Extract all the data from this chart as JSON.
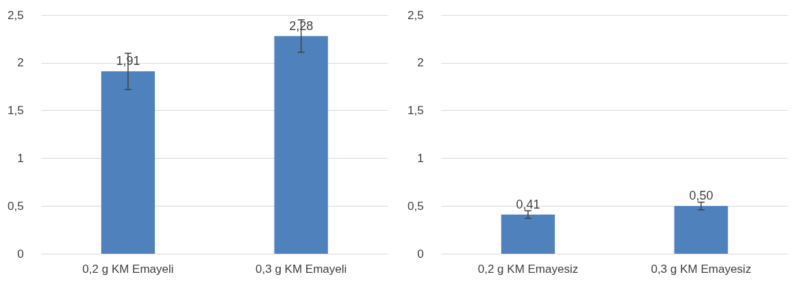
{
  "chart_data": [
    {
      "type": "bar",
      "categories": [
        "0,2 g KM Emayeli",
        "0,3 g KM Emayeli"
      ],
      "series": [
        {
          "color": "#4f81bd",
          "values": [
            1.91,
            2.28
          ],
          "errors": [
            0.19,
            0.17
          ],
          "value_labels": [
            "1,91",
            "2,28"
          ]
        }
      ],
      "ylim": [
        0,
        2.5
      ],
      "yticks": [
        0,
        {
          "value": 0.5,
          "label": "0,5"
        },
        1,
        {
          "value": 1.5,
          "label": "1,5"
        },
        2,
        {
          "value": 2.5,
          "label": "2,5"
        }
      ],
      "grid": "y"
    },
    {
      "type": "bar",
      "categories": [
        "0,2 g KM Emayesiz",
        "0,3 g KM Emayesiz"
      ],
      "series": [
        {
          "color": "#4f81bd",
          "values": [
            0.41,
            0.5
          ],
          "errors": [
            0.04,
            0.04
          ],
          "value_labels": [
            "0,41",
            "0,50"
          ]
        }
      ],
      "ylim": [
        0,
        2.5
      ],
      "yticks": [
        0,
        {
          "value": 0.5,
          "label": "0,5"
        },
        1,
        {
          "value": 1.5,
          "label": "1,5"
        },
        2,
        {
          "value": 2.5,
          "label": "2,5"
        }
      ],
      "grid": "y"
    }
  ]
}
